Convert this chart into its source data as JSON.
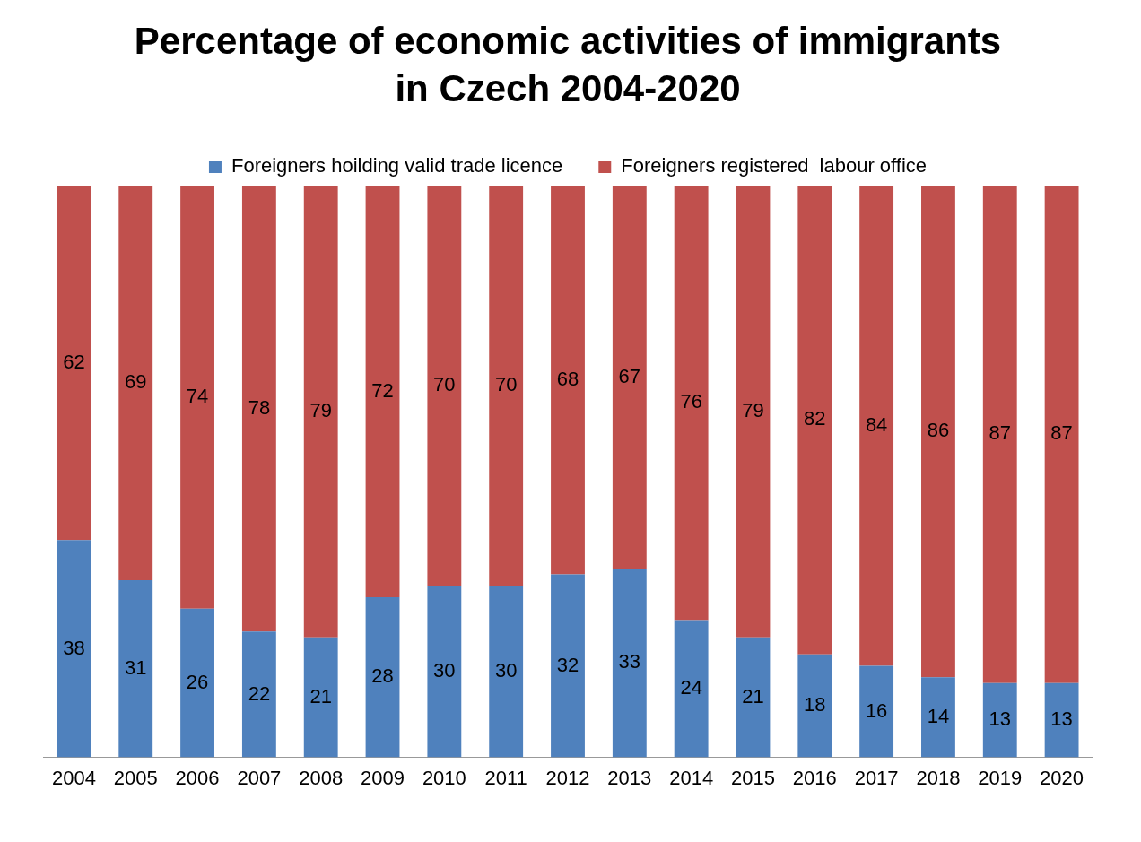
{
  "chart_data": {
    "type": "bar",
    "title": "Percentage of economic activities of immigrants in Czech 2004-2020",
    "categories": [
      "2004",
      "2005",
      "2006",
      "2007",
      "2008",
      "2009",
      "2010",
      "2011",
      "2012",
      "2013",
      "2014",
      "2015",
      "2016",
      "2017",
      "2018",
      "2019",
      "2020"
    ],
    "series": [
      {
        "name": "Foreigners hoilding valid trade licence",
        "color": "#4f81bd",
        "values": [
          38,
          31,
          26,
          22,
          21,
          28,
          30,
          30,
          32,
          33,
          24,
          21,
          18,
          16,
          14,
          13,
          13
        ]
      },
      {
        "name": "Foreigners registered  labour office",
        "color": "#c0504d",
        "values": [
          62,
          69,
          74,
          78,
          79,
          72,
          70,
          70,
          68,
          67,
          76,
          79,
          82,
          84,
          86,
          87,
          87
        ]
      }
    ],
    "stacked": true,
    "data_labels": true,
    "legend": "top",
    "grid": false,
    "tick_labels": "x"
  }
}
